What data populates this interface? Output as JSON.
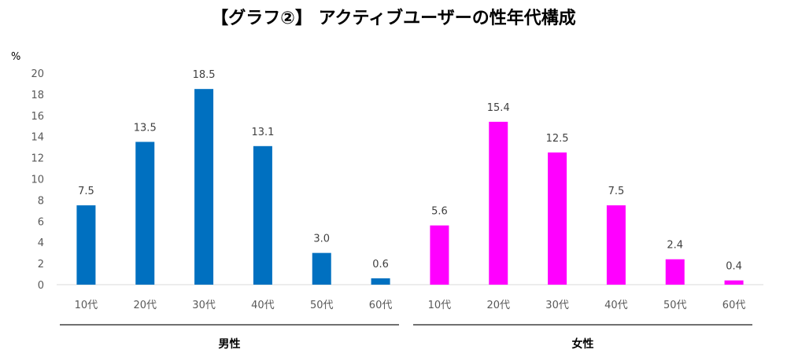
{
  "chart_data": {
    "type": "bar",
    "title": "【グラフ②】 アクティブユーザーの性年代構成",
    "ylabel": "%",
    "ylim": [
      0,
      20
    ],
    "yticks": [
      0,
      2,
      4,
      6,
      8,
      10,
      12,
      14,
      16,
      18,
      20
    ],
    "grid": false,
    "legend": "none",
    "groups": [
      {
        "name": "男性",
        "color": "#0070C0",
        "categories": [
          "10代",
          "20代",
          "30代",
          "40代",
          "50代",
          "60代"
        ],
        "values": [
          7.5,
          13.5,
          18.5,
          13.1,
          3.0,
          0.6
        ],
        "labels": [
          "7.5",
          "13.5",
          "18.5",
          "13.1",
          "3.0",
          "0.6"
        ]
      },
      {
        "name": "女性",
        "color": "#FF00FF",
        "categories": [
          "10代",
          "20代",
          "30代",
          "40代",
          "50代",
          "60代"
        ],
        "values": [
          5.6,
          15.4,
          12.5,
          7.5,
          2.4,
          0.4
        ],
        "labels": [
          "5.6",
          "15.4",
          "12.5",
          "7.5",
          "2.4",
          "0.4"
        ]
      }
    ]
  }
}
